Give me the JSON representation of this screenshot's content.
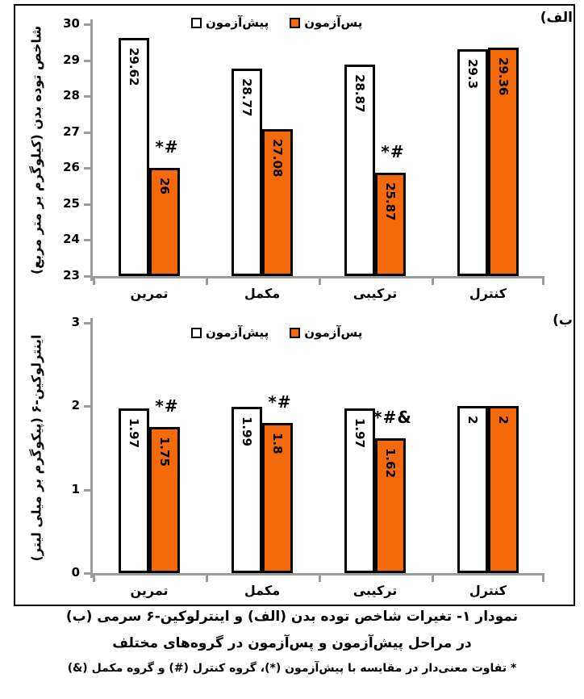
{
  "figure": {
    "panel_a_label": "الف)",
    "panel_b_label": "ب)",
    "legend": {
      "pre_label": "پیش‌آزمون",
      "post_label": "پس‌آزمون"
    },
    "colors": {
      "pre_fill": "#FFFFFF",
      "post_fill": "#F4690A",
      "bar_border": "#000000",
      "axis": "#9C9C9C"
    }
  },
  "chart_data": [
    {
      "id": "bmi",
      "type": "bar",
      "panel": "الف)",
      "ylabel": "شاخص توده بدن (کیلوگرم بر متر مربع)",
      "ylim": [
        23,
        30
      ],
      "yticks": [
        "30",
        "29",
        "28",
        "27",
        "26",
        "25",
        "24",
        "23"
      ],
      "ytick_values": [
        30,
        29,
        28,
        27,
        26,
        25,
        24,
        23
      ],
      "categories": [
        "تمرین",
        "مکمل",
        "ترکیبی",
        "کنترل"
      ],
      "series": [
        {
          "name": "پیش‌آزمون",
          "values": [
            29.62,
            28.77,
            28.87,
            29.3
          ],
          "labels": [
            "29.62",
            "28.77",
            "28.87",
            "29.3"
          ]
        },
        {
          "name": "پس‌آزمون",
          "values": [
            26,
            27.08,
            25.87,
            29.36
          ],
          "labels": [
            "26",
            "27.08",
            "25.87",
            "29.36"
          ]
        }
      ],
      "sig_markers": [
        "*#",
        "",
        "*#",
        ""
      ],
      "legend_position": "top-center",
      "grid": false
    },
    {
      "id": "il6",
      "type": "bar",
      "panel": "ب)",
      "ylabel": "اینترلوکین-۶ (پیکوگرم بر میلی لیتر)",
      "ylim": [
        0,
        3
      ],
      "yticks": [
        "3",
        "2",
        "1",
        "0"
      ],
      "ytick_values": [
        3,
        2,
        1,
        0
      ],
      "categories": [
        "تمرین",
        "مکمل",
        "ترکیبی",
        "کنترل"
      ],
      "series": [
        {
          "name": "پیش‌آزمون",
          "values": [
            1.97,
            1.99,
            1.97,
            2
          ],
          "labels": [
            "1.97",
            "1.99",
            "1.97",
            "2"
          ]
        },
        {
          "name": "پس‌آزمون",
          "values": [
            1.75,
            1.8,
            1.62,
            2
          ],
          "labels": [
            "1.75",
            "1.8",
            "1.62",
            "2"
          ]
        }
      ],
      "sig_markers": [
        "*#",
        "*#",
        "*#&",
        ""
      ],
      "legend_position": "top-center",
      "grid": false
    }
  ],
  "caption": {
    "line1": "نمودار ۱- تغیرات شاخص توده بدن (الف) و اینترلوکین-۶ سرمی (ب)",
    "line2": "در مراحل پیش‌آزمون و پس‌آزمون در گروه‌های مختلف",
    "line3": "* تفاوت معنی‌دار در مقایسه با پیش‌آزمون (*)، گروه کنترل (#) و گروه مکمل (&)"
  }
}
